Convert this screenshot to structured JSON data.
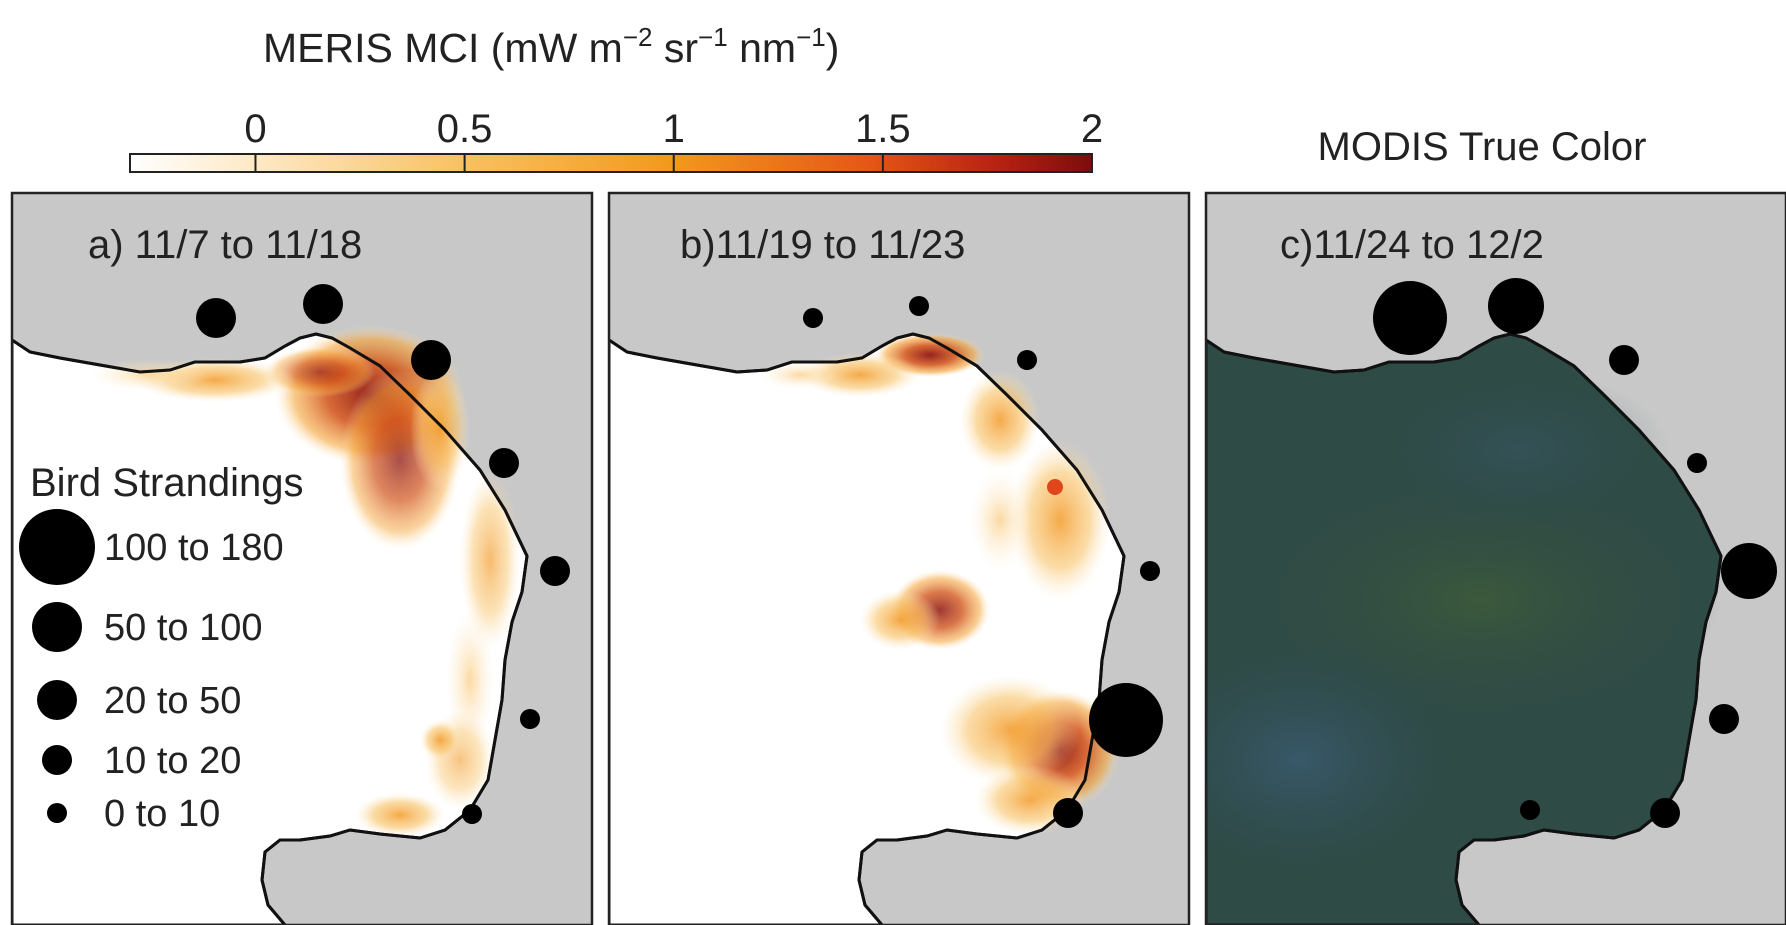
{
  "colorbar": {
    "title_main": "MERIS MCI (mW m",
    "exp1": "−2",
    "mid1": " sr",
    "exp2": "−1",
    "mid2": " nm",
    "exp3": "−1",
    "title_end": ")",
    "ticks": [
      "0",
      "0.5",
      "1",
      "1.5",
      "2"
    ],
    "range": [
      -0.3,
      2
    ]
  },
  "modis_label": "MODIS True Color",
  "panels": [
    {
      "label": "a) 11/7 to 11/18"
    },
    {
      "label": "b)11/19 to 11/23"
    },
    {
      "label": "c)11/24 to 12/2"
    }
  ],
  "legend": {
    "title": "Bird Strandings",
    "items": [
      "100 to 180",
      "50 to 100",
      "20 to 50",
      "10 to 20",
      "0 to 10"
    ]
  },
  "colors": {
    "land": "#c8c8c8",
    "water": "#ffffff",
    "modis_water": "#2f4b45",
    "cmap": [
      "#ffffff",
      "#fde3b8",
      "#f9b94f",
      "#f08c19",
      "#e0561a",
      "#b12711",
      "#7a0d0d"
    ]
  }
}
